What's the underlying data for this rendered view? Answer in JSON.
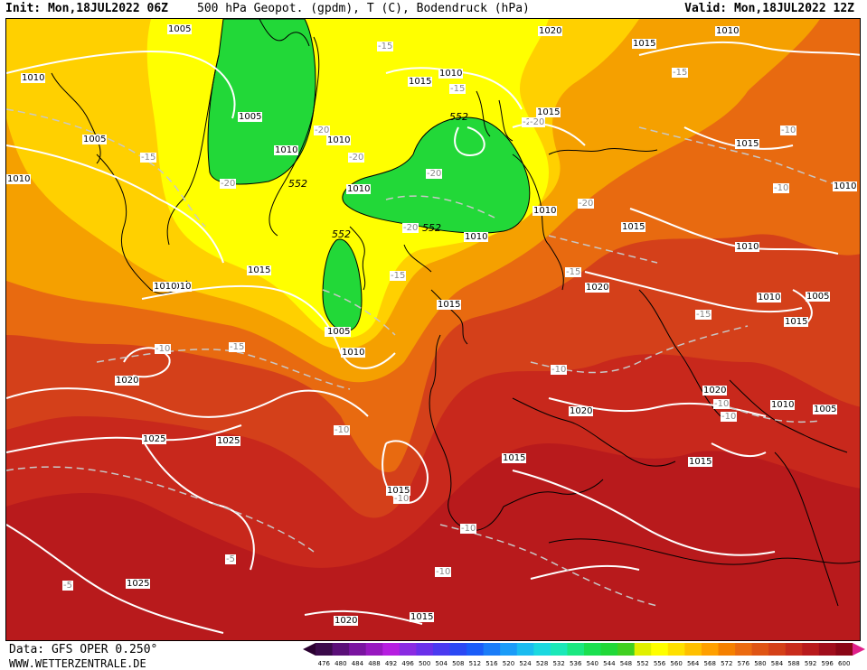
{
  "header": {
    "init": "Init: Mon,18JUL2022 06Z",
    "title": "500 hPa Geopot. (gpdm), T (C), Bodendruck (hPa)",
    "valid": "Valid: Mon,18JUL2022 12Z"
  },
  "footer": {
    "source": "Data: GFS OPER 0.250°",
    "site": "WWW.WETTERZENTRALE.DE"
  },
  "colors": {
    "green": "#22d838",
    "yellow": "#ffff00",
    "yellow_orange": "#ffd000",
    "orange": "#f5a000",
    "dark_orange": "#e86a10",
    "red_orange": "#d94a14",
    "red": "#c4241c",
    "dark_red": "#a80c1c",
    "isobar": "#ffffff",
    "isotherm": "#c8c8c8",
    "coast": "#000000"
  },
  "colorbar": {
    "labels": [
      "476",
      "480",
      "484",
      "488",
      "492",
      "496",
      "500",
      "504",
      "508",
      "512",
      "516",
      "520",
      "524",
      "528",
      "532",
      "536",
      "540",
      "544",
      "548",
      "552",
      "556",
      "560",
      "564",
      "568",
      "572",
      "576",
      "580",
      "584",
      "588",
      "592",
      "596",
      "600"
    ],
    "colors": [
      "#3a0a4a",
      "#5a0f78",
      "#7a14a0",
      "#9818c0",
      "#b61ee0",
      "#8a2be2",
      "#6a30ea",
      "#4a3af0",
      "#2a48f4",
      "#1a5cf8",
      "#1a7cf8",
      "#1a9cf8",
      "#1abcf0",
      "#1ad8e0",
      "#1ae8b8",
      "#1ae880",
      "#1ae050",
      "#20d838",
      "#40d020",
      "#e0f000",
      "#ffff00",
      "#ffe000",
      "#ffc000",
      "#ffa000",
      "#f58000",
      "#eb6a10",
      "#df5414",
      "#d44018",
      "#c82c1c",
      "#b81a1c",
      "#a00e1c",
      "#8a0616"
    ]
  },
  "isobar_labels": [
    "1005",
    "1010",
    "1005",
    "1010",
    "1005",
    "1010",
    "1010",
    "1010",
    "1015",
    "1010",
    "1015",
    "1010",
    "1010",
    "1020",
    "1015",
    "1015",
    "1010",
    "1010",
    "1015",
    "1010",
    "1010",
    "1005",
    "1010",
    "1015",
    "1020",
    "1015",
    "1020",
    "1010",
    "1005",
    "1010",
    "1015",
    "1025",
    "1025",
    "1015",
    "1015",
    "1020",
    "1015",
    "1025",
    "1020",
    "1015",
    "1010",
    "1005",
    "1020",
    "1010"
  ],
  "isotherm_labels": [
    "-15",
    "-15",
    "-20",
    "-20",
    "-15",
    "-20",
    "-20",
    "-20",
    "-20",
    "-20",
    "-15",
    "-20",
    "-15",
    "-15",
    "-10",
    "-10",
    "-15",
    "-10",
    "-10",
    "-10",
    "-15",
    "-10",
    "-10",
    "-10",
    "-5",
    "-5",
    "-10",
    "-10"
  ],
  "geopot_labels": [
    "552",
    "552",
    "552",
    "552"
  ]
}
